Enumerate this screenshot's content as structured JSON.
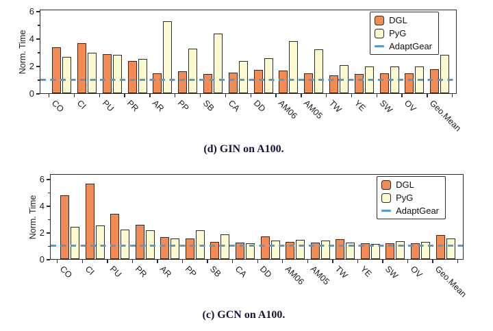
{
  "page": {
    "background": "#ffffff"
  },
  "colors": {
    "dgl": "#f28b54",
    "pyg": "#fbf9cf",
    "adaptgear": "#4f9bd2",
    "bar_edge": "#2b2b2b",
    "axis": "#2b2b2b",
    "caption_text": "#14143a"
  },
  "chart_data": [
    {
      "id": "gin-a100",
      "type": "bar",
      "title": "(d) GIN on A100.",
      "xlabel": "",
      "ylabel": "Norm. Time",
      "ylim": [
        0,
        6
      ],
      "yticks": [
        0,
        2,
        4,
        6
      ],
      "yminorticks": [
        1,
        3,
        5
      ],
      "grid": false,
      "legend_position": "top-right",
      "legend_entries": [
        "DGL",
        "PyG",
        "AdaptGear"
      ],
      "categories": [
        "CO",
        "CI",
        "PU",
        "PR",
        "AR",
        "PP",
        "SB",
        "CA",
        "DD",
        "AM06",
        "AM05",
        "TW",
        "YE",
        "SW",
        "OV",
        "Geo.Mean"
      ],
      "series": [
        {
          "name": "DGL",
          "color": "#f28b54",
          "values": [
            3.35,
            3.65,
            2.85,
            2.35,
            1.45,
            1.6,
            1.4,
            1.5,
            1.7,
            1.65,
            1.45,
            1.3,
            1.4,
            1.45,
            1.45,
            1.75
          ]
        },
        {
          "name": "PyG",
          "color": "#fbf9cf",
          "values": [
            2.65,
            2.95,
            2.8,
            2.5,
            5.25,
            3.25,
            4.35,
            2.35,
            2.55,
            3.8,
            3.2,
            2.05,
            1.95,
            1.95,
            1.95,
            2.8
          ]
        }
      ],
      "baseline": {
        "name": "AdaptGear",
        "value": 1.0,
        "color": "#4f9bd2",
        "style": "dashed"
      }
    },
    {
      "id": "gcn-a100",
      "type": "bar",
      "title": "(c) GCN on A100.",
      "xlabel": "",
      "ylabel": "Norm. Time",
      "ylim": [
        0,
        6
      ],
      "yticks": [
        0,
        2,
        4,
        6
      ],
      "yminorticks": [
        1,
        3,
        5
      ],
      "grid": false,
      "legend_position": "top-right",
      "legend_entries": [
        "DGL",
        "PyG",
        "AdaptGear"
      ],
      "categories": [
        "CO",
        "CI",
        "PU",
        "PR",
        "AR",
        "PP",
        "SB",
        "CA",
        "DD",
        "AM06",
        "AM05",
        "TW",
        "YE",
        "SW",
        "OV",
        "Geo.Mean"
      ],
      "series": [
        {
          "name": "DGL",
          "color": "#f28b54",
          "values": [
            4.75,
            5.65,
            3.4,
            2.55,
            1.65,
            1.55,
            1.3,
            1.25,
            1.7,
            1.3,
            1.25,
            1.5,
            1.2,
            1.2,
            1.2,
            1.8
          ]
        },
        {
          "name": "PyG",
          "color": "#fbf9cf",
          "values": [
            2.4,
            2.5,
            2.2,
            2.15,
            1.55,
            2.15,
            1.85,
            1.2,
            1.4,
            1.45,
            1.4,
            1.25,
            1.15,
            1.35,
            1.3,
            1.55
          ]
        }
      ],
      "baseline": {
        "name": "AdaptGear",
        "value": 1.0,
        "color": "#4f9bd2",
        "style": "dashed"
      }
    }
  ]
}
